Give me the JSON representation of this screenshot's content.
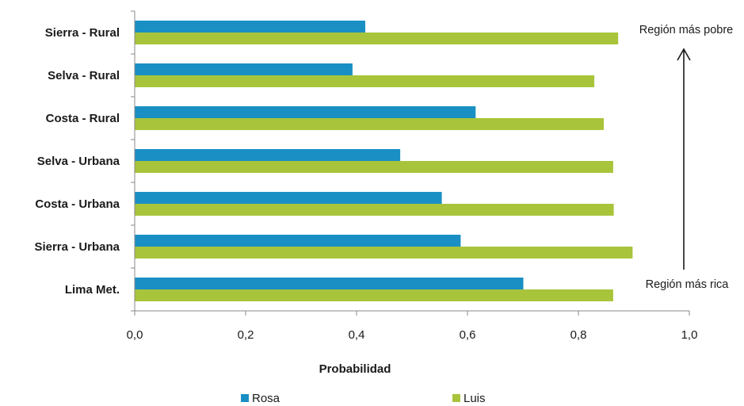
{
  "chart_data": {
    "type": "bar",
    "orientation": "horizontal",
    "categories": [
      "Sierra - Rural",
      "Selva - Rural",
      "Costa - Rural",
      "Selva - Urbana",
      "Costa - Urbana",
      "Sierra - Urbana",
      "Lima Met."
    ],
    "series": [
      {
        "name": "Rosa",
        "color": "#1a8fc4",
        "values": [
          0.415,
          0.392,
          0.614,
          0.478,
          0.553,
          0.587,
          0.7
        ]
      },
      {
        "name": "Luis",
        "color": "#a8c43a",
        "values": [
          0.871,
          0.828,
          0.845,
          0.862,
          0.863,
          0.897,
          0.862
        ]
      }
    ],
    "xlabel": "Probabilidad",
    "ylabel": "",
    "xlim": [
      0,
      1.0
    ],
    "xticks": [
      "0,0",
      "0,2",
      "0,4",
      "0,6",
      "0,8",
      "1,0"
    ],
    "grid": false,
    "legend_position": "bottom",
    "annotations": {
      "top": "Región más pobre",
      "bottom": "Región más rica"
    }
  }
}
